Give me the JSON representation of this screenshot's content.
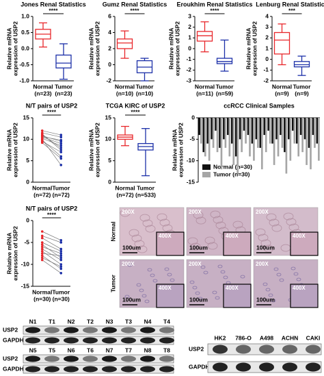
{
  "chart_data": [
    {
      "type": "box",
      "title": "Jones Renal Statistics",
      "ylabel": [
        "Relative mRNA",
        "expression of USP2"
      ],
      "categories": [
        "Normal",
        "Tumor"
      ],
      "n_labels": [
        "(n=23)",
        "(n=23)"
      ],
      "colors": [
        "#e8262a",
        "#1b2fa8"
      ],
      "boxes": [
        {
          "low": 0.05,
          "q1": 0.3,
          "median": 0.45,
          "q3": 0.6,
          "high": 0.8
        },
        {
          "low": -0.95,
          "q1": -0.6,
          "median": -0.45,
          "q3": -0.2,
          "high": 0.15
        }
      ],
      "significance": "****",
      "ylim": [
        -1,
        1
      ],
      "yticks": [
        {
          "value": -1,
          "label": "-1.0"
        },
        {
          "value": -0.5,
          "label": "-0.5"
        },
        {
          "value": 0,
          "label": "0.0"
        },
        {
          "value": 0.5,
          "label": "0.5"
        },
        {
          "value": 1,
          "label": "1.0"
        }
      ]
    },
    {
      "type": "box",
      "title": "Gumz Renal Statistics",
      "ylabel": [
        "Relative mRNA",
        "expression of USP2"
      ],
      "categories": [
        "Normal",
        "Tumor"
      ],
      "n_labels": [
        "(n=10)",
        "(n=10)"
      ],
      "colors": [
        "#e8262a",
        "#1b2fa8"
      ],
      "boxes": [
        {
          "low": 0.8,
          "q1": 2.0,
          "median": 2.7,
          "q3": 3.2,
          "high": 4.2
        },
        {
          "low": -2,
          "q1": -1.0,
          "median": -0.3,
          "q3": 0.5,
          "high": 0.8
        }
      ],
      "significance": "****",
      "ylim": [
        -2,
        6
      ],
      "yticks": [
        -2,
        0,
        2,
        4,
        6
      ]
    },
    {
      "type": "box",
      "title": "Eroukhim Renal Statistics",
      "ylabel": [
        "Relative mRNA",
        "expression of USP2"
      ],
      "categories": [
        "Normal",
        "Tumor"
      ],
      "n_labels": [
        "(n=11)",
        "(n=59)"
      ],
      "colors": [
        "#e8262a",
        "#1b2fa8"
      ],
      "boxes": [
        {
          "low": -0.3,
          "q1": 0.7,
          "median": 1.2,
          "q3": 1.6,
          "high": 2.5
        },
        {
          "low": -2.1,
          "q1": -1.4,
          "median": -1.2,
          "q3": -0.9,
          "high": 0.8
        }
      ],
      "significance": "****",
      "ylim": [
        -3,
        3
      ],
      "yticks": [
        -3,
        -2,
        -1,
        0,
        1,
        2,
        3
      ]
    },
    {
      "type": "box",
      "title": "Lenburg Renal Statistics",
      "ylabel": [
        "Relative mRNA",
        "expression of USP2"
      ],
      "categories": [
        "Normal",
        "Tumor"
      ],
      "n_labels": [
        "(n=9)",
        "(n=9)"
      ],
      "colors": [
        "#e8262a",
        "#1b2fa8"
      ],
      "boxes": [
        {
          "low": -0.5,
          "q1": 0.5,
          "median": 1.8,
          "q3": 2.5,
          "high": 3.3
        },
        {
          "low": -1.5,
          "q1": -0.7,
          "median": -0.5,
          "q3": -0.2,
          "high": 0.3
        }
      ],
      "significance": "***",
      "ylim": [
        -2,
        4
      ],
      "yticks": [
        -2,
        -1,
        0,
        1,
        2,
        3,
        4
      ]
    },
    {
      "type": "paired",
      "title": "N/T pairs of USP2",
      "ylabel": [
        "Relative mRNA",
        "expression of USP2"
      ],
      "categories": [
        "Normal",
        "Tumor"
      ],
      "n_labels": [
        "(n=72)",
        "(n=72)"
      ],
      "colors": [
        "#e8262a",
        "#1b2fa8"
      ],
      "normal": [
        9.5,
        10.2,
        10.8,
        11.5,
        9.8,
        10.5,
        11.0,
        12.0,
        10.0,
        11.2,
        9.2,
        10.6
      ],
      "tumor": [
        7.0,
        8.5,
        9.5,
        10.5,
        6.0,
        9.0,
        8.0,
        11.0,
        4.0,
        7.5,
        5.5,
        9.8
      ],
      "significance": "****",
      "ylim": [
        0,
        15
      ],
      "yticks": [
        0,
        5,
        10,
        15
      ]
    },
    {
      "type": "box",
      "title": "TCGA KIRC of USP2",
      "ylabel": [
        "Relative mRNA",
        "expression of USP2"
      ],
      "categories": [
        "Normal",
        "Tumor"
      ],
      "n_labels": [
        "(n=72)",
        "(n=533)"
      ],
      "colors": [
        "#e8262a",
        "#1b2fa8"
      ],
      "boxes": [
        {
          "low": 8.5,
          "q1": 10.0,
          "median": 10.5,
          "q3": 11.0,
          "high": 13.0
        },
        {
          "low": 1.5,
          "q1": 7.5,
          "median": 8.3,
          "q3": 9.0,
          "high": 12.5
        }
      ],
      "significance": "****",
      "ylim": [
        0,
        15
      ],
      "yticks": [
        0,
        5,
        10,
        15
      ]
    },
    {
      "type": "bar",
      "title": "ccRCC Clinical Samples",
      "ylabel": [
        "Relative mRNA",
        "expression of USP2"
      ],
      "series": [
        {
          "name": "Normal (n=30)",
          "color": "#111111",
          "values": [
            -4,
            -8,
            -6,
            -5,
            -3,
            -7,
            -5,
            -4,
            -6,
            -9,
            -5,
            -3,
            -4,
            -6,
            -5,
            -7,
            -4,
            -3,
            -6,
            -5,
            -4,
            -8,
            -5,
            -3,
            -6,
            -4,
            -5,
            -7,
            -4,
            -6
          ]
        },
        {
          "name": "Tumor (n=30)",
          "color": "#a6a6a6",
          "values": [
            -6,
            -9,
            -10,
            -7,
            -8,
            -12,
            -7,
            -9,
            -11,
            -13,
            -8,
            -6,
            -9,
            -10,
            -7,
            -12,
            -8,
            -6,
            -11,
            -9,
            -7,
            -13,
            -10,
            -6,
            -9,
            -8,
            -11,
            -12,
            -7,
            -10
          ]
        }
      ],
      "legend": "lower-left",
      "ylim": [
        -15,
        0
      ],
      "yticks": [
        -15,
        -10,
        -5,
        0
      ]
    },
    {
      "type": "paired",
      "title": "N/T pairs of USP2",
      "ylabel": [
        "Relative mRNA",
        "expression of USP2"
      ],
      "categories": [
        "Normal",
        "Tumor"
      ],
      "n_labels": [
        "(n=30)",
        "(n=30)"
      ],
      "colors": [
        "#e8262a",
        "#1b2fa8"
      ],
      "normal": [
        -2.5,
        -3.5,
        -4.0,
        -5.0,
        -5.5,
        -6.0,
        -6.5,
        -7.0,
        -7.5,
        -8.0,
        -8.5,
        -9.0
      ],
      "tumor": [
        -4.5,
        -5.0,
        -6.5,
        -7.0,
        -8.5,
        -7.5,
        -9.0,
        -10.0,
        -8.0,
        -11.0,
        -10.5,
        -12.0
      ],
      "significance": "****",
      "ylim": [
        -15,
        0
      ],
      "yticks": [
        -15,
        -10,
        -5,
        0
      ]
    }
  ],
  "ihc": {
    "rows": [
      "Normal",
      "Tumor"
    ],
    "magnification_low": "200X",
    "magnification_high": "400X",
    "scale": "100um"
  },
  "blots": {
    "left": {
      "lanes_top": [
        "N1",
        "T1",
        "N2",
        "T2",
        "N3",
        "T3",
        "N4",
        "T4"
      ],
      "lanes_bottom": [
        "N5",
        "T5",
        "N6",
        "T6",
        "N7",
        "T7",
        "N8",
        "T8"
      ],
      "rows": [
        "USP2",
        "GAPDH"
      ]
    },
    "right": {
      "lanes": [
        "HK2",
        "786-O",
        "A498",
        "ACHN",
        "CAKI"
      ],
      "rows": [
        "USP2",
        "GAPDH"
      ]
    }
  }
}
